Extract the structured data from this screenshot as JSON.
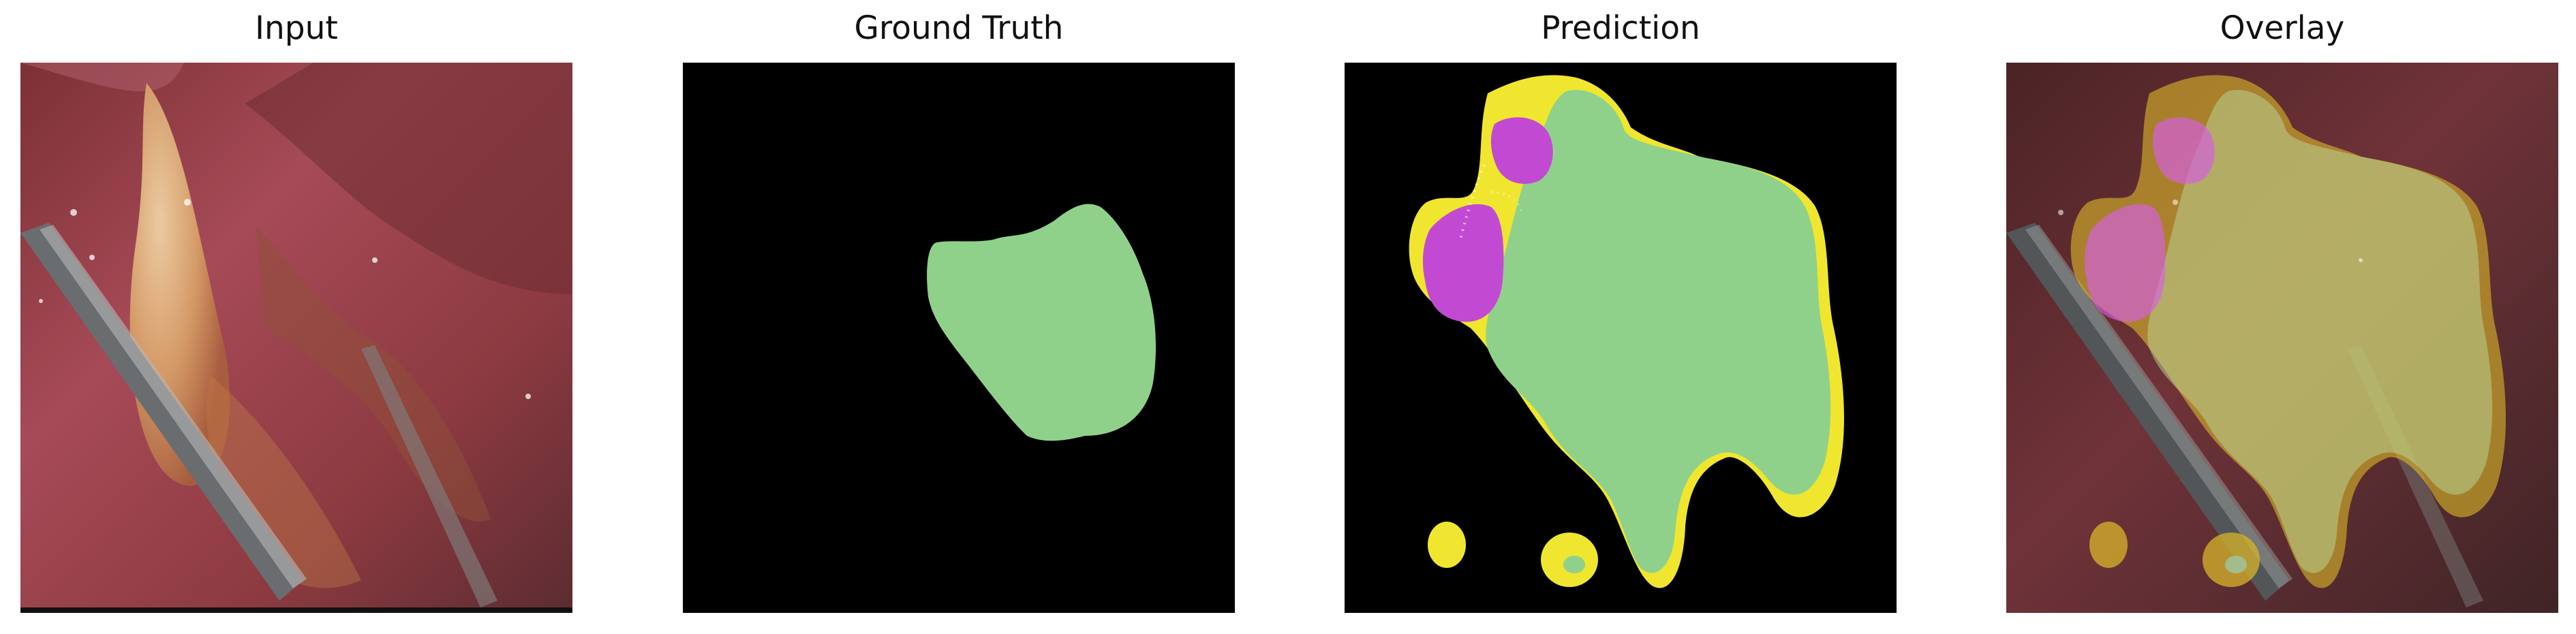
{
  "panels": [
    {
      "title": "Input"
    },
    {
      "title": "Ground Truth"
    },
    {
      "title": "Prediction"
    },
    {
      "title": "Overlay"
    }
  ],
  "colors": {
    "background": "#ffffff",
    "title_text": "#111111",
    "mask_background": "#000000",
    "class_green": "#8fd18b",
    "class_yellow": "#f0e62f",
    "class_magenta": "#c24ad3",
    "overlay_yellow": "#d8b42a"
  },
  "icons": []
}
